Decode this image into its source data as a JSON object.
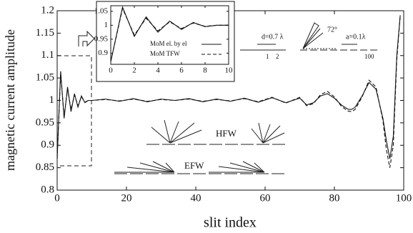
{
  "chart_data": [
    {
      "type": "line",
      "x_label": "slit index",
      "y_label": "magnetic current amplitude",
      "xlim": [
        0,
        100
      ],
      "xticks": [
        0,
        20,
        40,
        60,
        80,
        100
      ],
      "ylim": [
        0.8,
        1.2
      ],
      "yticks": [
        0.8,
        0.85,
        0.9,
        0.95,
        1,
        1.05,
        1.1,
        1.15,
        1.2
      ],
      "grid": false,
      "x": [
        0,
        1,
        2,
        3,
        4,
        5,
        6,
        7,
        8,
        9,
        10,
        14,
        18,
        22,
        26,
        30,
        34,
        38,
        42,
        46,
        50,
        54,
        58,
        62,
        66,
        70,
        72,
        74,
        76,
        78,
        80,
        82,
        84,
        85,
        86,
        88,
        90,
        92,
        94,
        95,
        96,
        97,
        98,
        99
      ],
      "series": [
        {
          "name": "MoM el. by el",
          "color": "#111111",
          "line_style": "solid",
          "values": [
            0.87,
            1.065,
            0.96,
            1.03,
            0.975,
            1.015,
            0.985,
            1.01,
            0.995,
            1.0,
            1.0,
            1.003,
            0.998,
            1.004,
            0.997,
            1.003,
            1.0,
            1.004,
            0.997,
            1.003,
            0.998,
            1.005,
            0.996,
            1.006,
            0.995,
            1.005,
            0.99,
            0.995,
            1.01,
            1.015,
            1.005,
            0.99,
            0.98,
            0.98,
            0.985,
            1.01,
            1.04,
            1.025,
            0.96,
            0.91,
            0.87,
            0.92,
            1.1,
            1.19
          ]
        },
        {
          "name": "MoM TFW",
          "color": "#111111",
          "line_style": "dashed",
          "values": [
            0.87,
            1.06,
            0.965,
            1.025,
            0.98,
            1.012,
            0.988,
            1.008,
            0.996,
            1.0,
            1.0,
            1.002,
            0.999,
            1.003,
            0.998,
            1.002,
            1.0,
            1.003,
            0.998,
            1.002,
            0.999,
            1.004,
            0.997,
            1.007,
            0.994,
            1.007,
            0.988,
            0.993,
            1.013,
            1.02,
            1.008,
            0.987,
            0.976,
            0.975,
            0.98,
            1.008,
            1.045,
            1.03,
            0.955,
            0.89,
            0.85,
            0.9,
            1.09,
            1.19
          ]
        }
      ],
      "annotations": [
        "HFW",
        "EFW",
        "d=0.7 λ",
        "a=0.1λ",
        "72°",
        "1",
        "2",
        "100"
      ]
    },
    {
      "type": "line",
      "xlim": [
        0,
        10
      ],
      "xticks": [
        0,
        2,
        4,
        6,
        8,
        10
      ],
      "ylim": [
        0.86,
        1.07
      ],
      "yticks": [
        0.9,
        0.95,
        1,
        1.05
      ],
      "grid": false,
      "legend": "lower right",
      "x": [
        0,
        1,
        2,
        3,
        4,
        5,
        6,
        7,
        8,
        9,
        10
      ],
      "series": [
        {
          "name": "MoM el. by el",
          "color": "#111111",
          "line_style": "solid",
          "values": [
            0.87,
            1.065,
            0.96,
            1.03,
            0.975,
            1.015,
            0.985,
            1.01,
            0.995,
            1.0,
            1.0
          ]
        },
        {
          "name": "MoM TFW",
          "color": "#111111",
          "line_style": "dashed",
          "values": [
            0.87,
            1.06,
            0.965,
            1.025,
            0.98,
            1.012,
            0.988,
            1.008,
            0.996,
            1.0,
            1.0
          ]
        }
      ]
    }
  ]
}
